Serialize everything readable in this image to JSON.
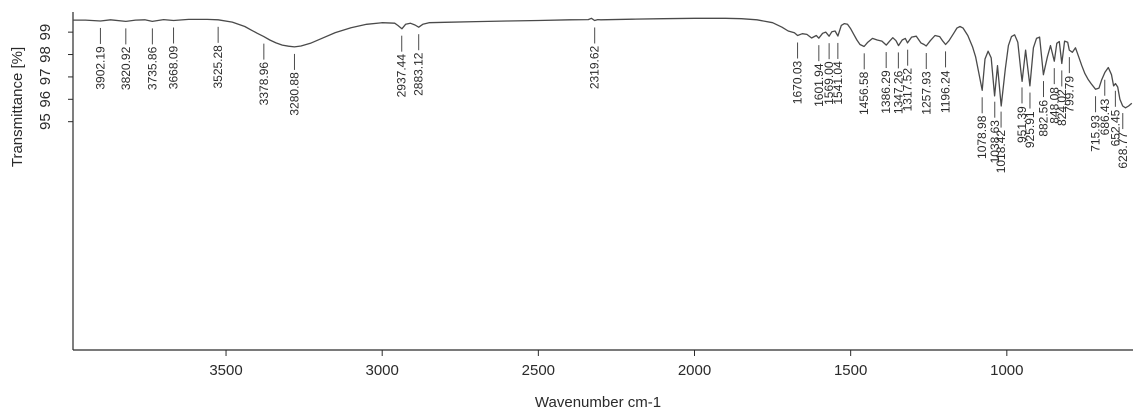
{
  "chart_data": {
    "type": "line",
    "title": "",
    "xlabel": "Wavenumber cm-1",
    "ylabel": "Transmittance [%]",
    "x_reversed": true,
    "xlim": [
      3990,
      596
    ],
    "ylim": [
      84.8,
      99.9
    ],
    "xticks": [
      3500,
      3000,
      2500,
      2000,
      1500,
      1000
    ],
    "yticks": [
      95,
      96,
      97,
      98,
      99
    ],
    "grid": false,
    "series": [
      {
        "x": [
          3990,
          3950,
          3902,
          3870,
          3821,
          3790,
          3760,
          3736,
          3700,
          3668,
          3620,
          3560,
          3525,
          3480,
          3440,
          3420,
          3400,
          3379,
          3360,
          3340,
          3320,
          3300,
          3281,
          3260,
          3230,
          3200,
          3150,
          3100,
          3050,
          3000,
          2960,
          2950,
          2937,
          2925,
          2910,
          2895,
          2883,
          2870,
          2850,
          2800,
          2700,
          2600,
          2500,
          2400,
          2340,
          2330,
          2320,
          2310,
          2300,
          2200,
          2100,
          2000,
          1900,
          1850,
          1800,
          1750,
          1720,
          1700,
          1680,
          1670,
          1655,
          1640,
          1625,
          1610,
          1602,
          1590,
          1580,
          1569,
          1560,
          1550,
          1541,
          1530,
          1520,
          1510,
          1500,
          1490,
          1480,
          1470,
          1457,
          1445,
          1430,
          1415,
          1400,
          1386,
          1375,
          1365,
          1355,
          1347,
          1335,
          1325,
          1318,
          1305,
          1290,
          1275,
          1265,
          1258,
          1245,
          1230,
          1215,
          1205,
          1196,
          1185,
          1170,
          1160,
          1150,
          1140,
          1125,
          1110,
          1100,
          1090,
          1079,
          1070,
          1060,
          1050,
          1039,
          1030,
          1018,
          1005,
          995,
          985,
          975,
          965,
          955,
          951,
          940,
          926,
          915,
          905,
          895,
          883,
          870,
          860,
          848,
          840,
          832,
          824,
          815,
          805,
          800,
          790,
          780,
          770,
          760,
          750,
          740,
          730,
          716,
          705,
          697,
          686,
          675,
          665,
          658,
          652,
          645,
          638,
          629,
          620,
          610,
          600
        ],
        "y": [
          99.54,
          99.54,
          99.5,
          99.55,
          99.48,
          99.54,
          99.55,
          99.48,
          99.56,
          99.52,
          99.57,
          99.57,
          99.55,
          99.45,
          99.25,
          99.1,
          98.95,
          98.8,
          98.65,
          98.52,
          98.42,
          98.37,
          98.34,
          98.38,
          98.5,
          98.68,
          98.98,
          99.2,
          99.35,
          99.42,
          99.4,
          99.3,
          99.15,
          99.35,
          99.4,
          99.32,
          99.22,
          99.35,
          99.42,
          99.44,
          99.47,
          99.5,
          99.52,
          99.55,
          99.56,
          99.62,
          99.52,
          99.56,
          99.55,
          99.58,
          99.6,
          99.62,
          99.62,
          99.6,
          99.55,
          99.42,
          99.22,
          99.05,
          98.97,
          98.85,
          98.93,
          98.9,
          98.74,
          98.85,
          98.73,
          98.95,
          99.0,
          98.82,
          99.02,
          99.05,
          98.83,
          99.3,
          99.38,
          99.35,
          99.15,
          98.9,
          98.65,
          98.45,
          98.36,
          98.55,
          98.72,
          98.65,
          98.6,
          98.42,
          98.6,
          98.75,
          98.62,
          98.4,
          98.65,
          98.72,
          98.52,
          98.78,
          98.82,
          98.52,
          98.45,
          98.38,
          98.62,
          98.85,
          98.8,
          98.6,
          98.45,
          98.62,
          98.95,
          99.18,
          99.25,
          99.18,
          98.85,
          98.35,
          97.9,
          97.2,
          96.4,
          97.8,
          98.15,
          97.85,
          96.15,
          97.5,
          95.7,
          97.35,
          98.4,
          98.8,
          98.88,
          98.55,
          97.25,
          96.8,
          98.2,
          96.6,
          98.3,
          98.72,
          98.78,
          97.1,
          97.9,
          98.4,
          97.7,
          98.5,
          98.58,
          97.6,
          98.6,
          98.55,
          98.2,
          98.1,
          98.3,
          97.9,
          97.5,
          97.15,
          96.9,
          96.7,
          96.45,
          96.5,
          96.85,
          97.2,
          97.42,
          97.1,
          96.6,
          96.7,
          96.55,
          96.0,
          95.7,
          95.62,
          95.7,
          95.82
        ]
      }
    ],
    "peak_labels": [
      {
        "label": "3902.19",
        "x": 3902.19
      },
      {
        "label": "3820.92",
        "x": 3820.92
      },
      {
        "label": "3735.86",
        "x": 3735.86
      },
      {
        "label": "3668.09",
        "x": 3668.09
      },
      {
        "label": "3525.28",
        "x": 3525.28
      },
      {
        "label": "3378.96",
        "x": 3378.96
      },
      {
        "label": "3280.88",
        "x": 3280.88
      },
      {
        "label": "2937.44",
        "x": 2937.44
      },
      {
        "label": "2883.12",
        "x": 2883.12
      },
      {
        "label": "2319.62",
        "x": 2319.62
      },
      {
        "label": "1670.03",
        "x": 1670.03
      },
      {
        "label": "1601.94",
        "x": 1601.94
      },
      {
        "label": "1569.00",
        "x": 1569.0
      },
      {
        "label": "1541.04",
        "x": 1541.04
      },
      {
        "label": "1456.58",
        "x": 1456.58
      },
      {
        "label": "1386.29",
        "x": 1386.29
      },
      {
        "label": "1347.26",
        "x": 1347.26
      },
      {
        "label": "1317.52",
        "x": 1317.52
      },
      {
        "label": "1257.93",
        "x": 1257.93
      },
      {
        "label": "1196.24",
        "x": 1196.24
      },
      {
        "label": "1078.98",
        "x": 1078.98
      },
      {
        "label": "1038.63",
        "x": 1038.63
      },
      {
        "label": "1018.42",
        "x": 1018.42
      },
      {
        "label": "951.39",
        "x": 951.39
      },
      {
        "label": "925.91",
        "x": 925.91
      },
      {
        "label": "882.56",
        "x": 882.56
      },
      {
        "label": "848.08",
        "x": 848.08
      },
      {
        "label": "824.02",
        "x": 824.02
      },
      {
        "label": "799.79",
        "x": 799.79
      },
      {
        "label": "715.93",
        "x": 715.93
      },
      {
        "label": "686.43",
        "x": 686.43
      },
      {
        "label": "652.45",
        "x": 652.45
      },
      {
        "label": "628.77",
        "x": 628.77
      }
    ],
    "colors": {
      "line": "#4a4a4a",
      "axis": "#2a2a2a",
      "text": "#2a2a2a"
    }
  }
}
